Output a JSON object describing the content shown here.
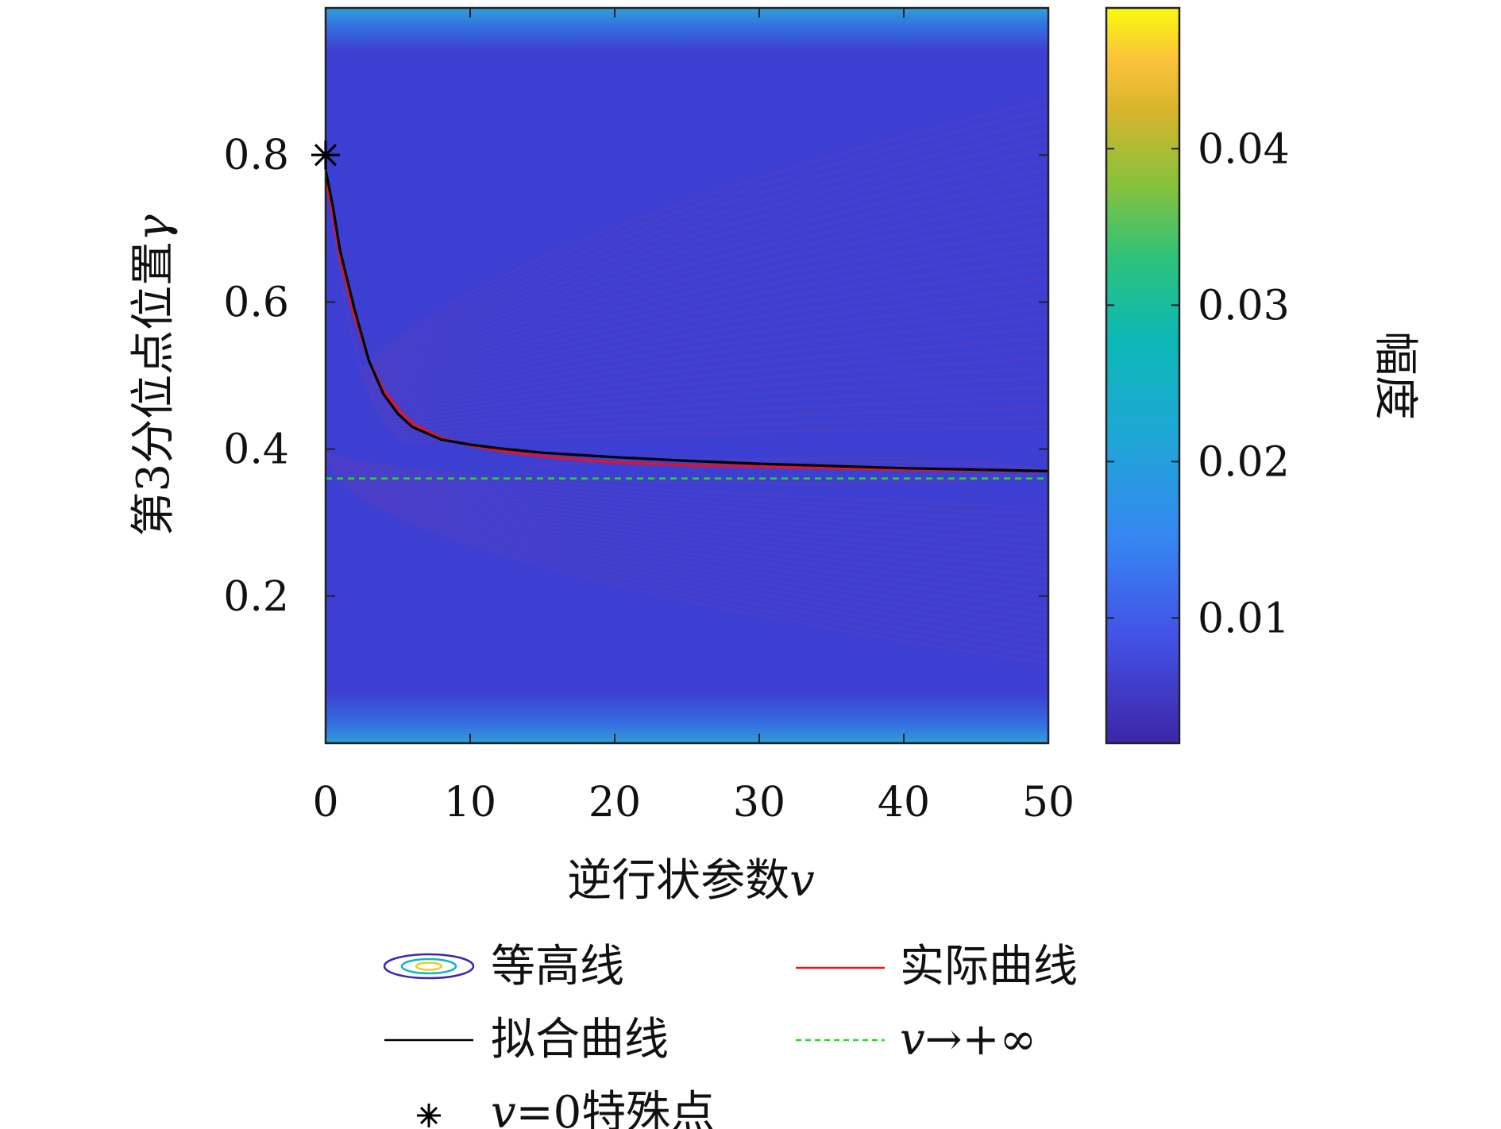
{
  "chart_data": {
    "type": "contour",
    "xlabel": "逆行状参数",
    "xlabel_symbol": "v",
    "ylabel": "第3分位点位置",
    "ylabel_symbol": "γ",
    "xlim": [
      0,
      50
    ],
    "ylim": [
      0,
      1
    ],
    "x_ticks": [
      0,
      10,
      20,
      30,
      40,
      50
    ],
    "x_tick_labels": [
      "0",
      "10",
      "20",
      "30",
      "40",
      "50"
    ],
    "y_ticks": [
      0.2,
      0.4,
      0.6,
      0.8
    ],
    "y_tick_labels": [
      "0.2",
      "0.4",
      "0.6",
      "0.8"
    ],
    "colorbar": {
      "label": "幅度",
      "range": [
        0.002,
        0.049
      ],
      "ticks": [
        0.01,
        0.02,
        0.03,
        0.04
      ],
      "tick_labels": [
        "0.01",
        "0.02",
        "0.03",
        "0.04"
      ],
      "colormap": "parula"
    },
    "contour_color": "#4b3fc8",
    "series": [
      {
        "name": "实际曲线",
        "color": "#e8131b",
        "x": [
          0,
          0.5,
          1,
          2,
          3,
          4,
          5,
          6,
          8,
          10,
          12,
          15,
          20,
          25,
          30,
          35,
          40,
          45,
          50
        ],
        "y": [
          0.77,
          0.72,
          0.66,
          0.58,
          0.52,
          0.48,
          0.455,
          0.435,
          0.415,
          0.405,
          0.398,
          0.39,
          0.382,
          0.378,
          0.376,
          0.374,
          0.372,
          0.371,
          0.37
        ]
      },
      {
        "name": "拟合曲线",
        "color": "#000000",
        "x": [
          0,
          0.5,
          1,
          2,
          3,
          4,
          5,
          6,
          8,
          10,
          12,
          15,
          20,
          25,
          30,
          35,
          40,
          45,
          50
        ],
        "y": [
          0.78,
          0.73,
          0.67,
          0.59,
          0.52,
          0.475,
          0.448,
          0.43,
          0.413,
          0.406,
          0.401,
          0.395,
          0.389,
          0.384,
          0.38,
          0.377,
          0.374,
          0.372,
          0.37
        ]
      },
      {
        "name": "v→+∞",
        "color": "#22dd22",
        "style": "dashed",
        "x": [
          0,
          50
        ],
        "y": [
          0.36,
          0.36
        ]
      }
    ],
    "special_point": {
      "name": "v=0特殊点",
      "x": 0,
      "y": 0.8,
      "marker": "asterisk"
    },
    "legend": {
      "placement": "bottom",
      "entries": [
        {
          "label": "等高线",
          "kind": "contour"
        },
        {
          "label": "实际曲线",
          "kind": "line",
          "color": "#e8131b"
        },
        {
          "label": "拟合曲线",
          "kind": "line",
          "color": "#000000"
        },
        {
          "label_symbol": "v",
          "label_rest": "→+∞",
          "kind": "dashed",
          "color": "#22dd22"
        },
        {
          "label_symbol": "v",
          "label_rest": "=0特殊点",
          "kind": "asterisk"
        }
      ]
    }
  }
}
